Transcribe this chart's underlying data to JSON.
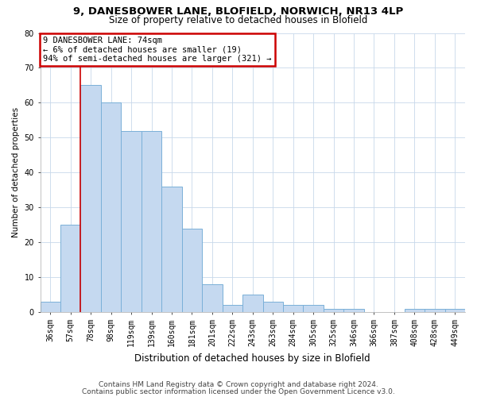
{
  "title1": "9, DANESBOWER LANE, BLOFIELD, NORWICH, NR13 4LP",
  "title2": "Size of property relative to detached houses in Blofield",
  "xlabel": "Distribution of detached houses by size in Blofield",
  "ylabel": "Number of detached properties",
  "categories": [
    "36sqm",
    "57sqm",
    "78sqm",
    "98sqm",
    "119sqm",
    "139sqm",
    "160sqm",
    "181sqm",
    "201sqm",
    "222sqm",
    "243sqm",
    "263sqm",
    "284sqm",
    "305sqm",
    "325sqm",
    "346sqm",
    "366sqm",
    "387sqm",
    "408sqm",
    "428sqm",
    "449sqm"
  ],
  "values": [
    3,
    25,
    65,
    60,
    52,
    52,
    36,
    24,
    8,
    2,
    5,
    3,
    2,
    2,
    1,
    1,
    0,
    0,
    1,
    1,
    1
  ],
  "bar_color": "#c5d9f0",
  "bar_edge_color": "#7ab0d8",
  "annotation_text": "9 DANESBOWER LANE: 74sqm\n← 6% of detached houses are smaller (19)\n94% of semi-detached houses are larger (321) →",
  "annotation_box_color": "#ffffff",
  "annotation_box_edge_color": "#cc0000",
  "redline_x": 1.5,
  "ylim": [
    0,
    80
  ],
  "yticks": [
    0,
    10,
    20,
    30,
    40,
    50,
    60,
    70,
    80
  ],
  "footer1": "Contains HM Land Registry data © Crown copyright and database right 2024.",
  "footer2": "Contains public sector information licensed under the Open Government Licence v3.0.",
  "bg_color": "#ffffff",
  "grid_color": "#c8d8ea",
  "title1_fontsize": 9.5,
  "title2_fontsize": 8.5,
  "xlabel_fontsize": 8.5,
  "ylabel_fontsize": 7.5,
  "tick_fontsize": 7,
  "annotation_fontsize": 7.5,
  "footer_fontsize": 6.5
}
